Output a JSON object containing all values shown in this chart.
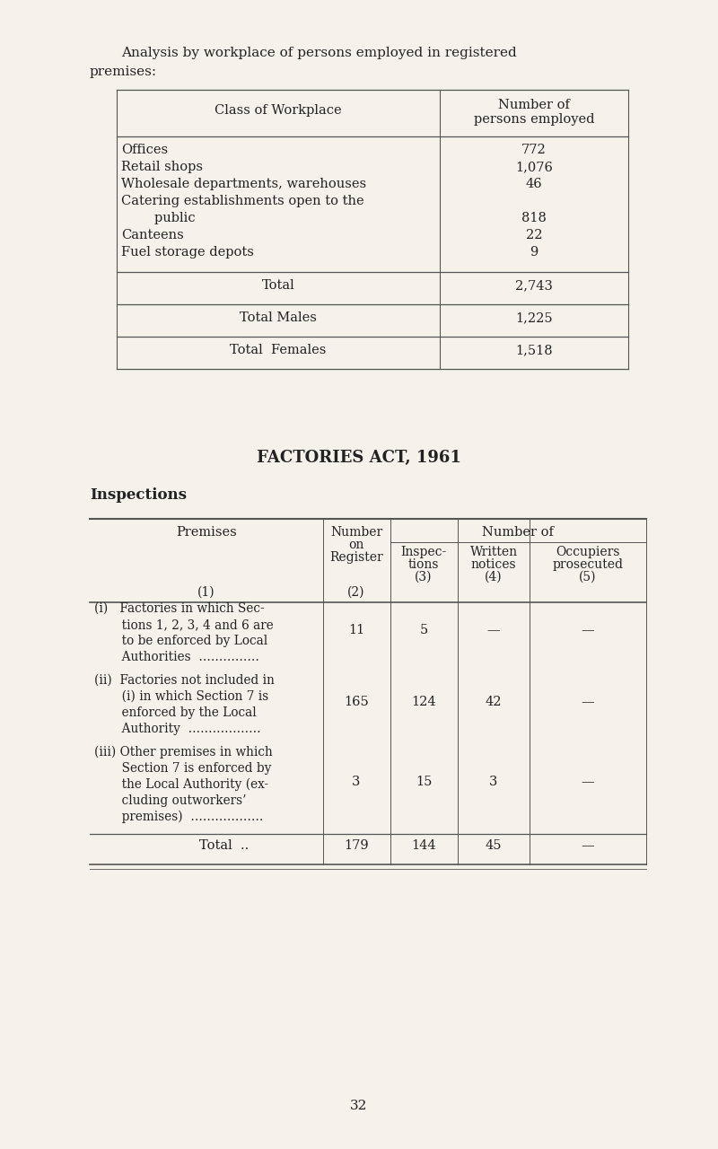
{
  "bg_color": "#f5f2eb",
  "text_color": "#222222",
  "page_number": "32",
  "intro_line1": "Analysis by workplace of persons employed in registered",
  "intro_line2": "premises:",
  "table1": {
    "col1_header": "Class of Workplace",
    "col2_header_line1": "Number of",
    "col2_header_line2": "persons employed",
    "rows": [
      {
        "label": "Offices",
        "value": "772"
      },
      {
        "label": "Retail shops",
        "value": "1,076"
      },
      {
        "label": "Wholesale departments, warehouses",
        "value": "46"
      },
      {
        "label": "Catering establishments open to the",
        "value": ""
      },
      {
        "label": "        public",
        "value": "818"
      },
      {
        "label": "Canteens",
        "value": "22"
      },
      {
        "label": "Fuel storage depots",
        "value": "9"
      }
    ],
    "total_label": "Total",
    "total_value": "2,743",
    "males_label": "Total Males",
    "males_value": "1,225",
    "females_label": "Total  Females",
    "females_value": "1,518"
  },
  "factories_title": "FACTORIES ACT, 1961",
  "inspections_subtitle": "Inspections",
  "table2_header_premises": "Premises",
  "table2_header_col1_num": "(1)",
  "table2_header_register": "Number\non\nRegister",
  "table2_header_col2_num": "(2)",
  "table2_header_numberof": "Number of",
  "table2_header_inspec": "Inspec-\ntions\n(3)",
  "table2_header_written": "Written\nnotices\n(4)",
  "table2_header_occupiers": "Occupiers\nprosecuted\n(5)",
  "table2_rows": [
    {
      "label_lines": [
        "(i)   Factories in which Sec-",
        "       tions 1, 2, 3, 4 and 6 are",
        "       to be enforced by Local",
        "       Authorities  ……………"
      ],
      "col2": "11",
      "col3": "5",
      "col4": "—",
      "col5": "—"
    },
    {
      "label_lines": [
        "(ii)  Factories not included in",
        "       (i) in which Section 7 is",
        "       enforced by the Local",
        "       Authority  ………………"
      ],
      "col2": "165",
      "col3": "124",
      "col4": "42",
      "col5": "—"
    },
    {
      "label_lines": [
        "(iii) Other premises in which",
        "       Section 7 is enforced by",
        "       the Local Authority (ex-",
        "       cluding outworkers’",
        "       premises)  ………………"
      ],
      "col2": "3",
      "col3": "15",
      "col4": "3",
      "col5": "—"
    }
  ],
  "table2_total_label": "Total  ..",
  "table2_total_col2": "179",
  "table2_total_col3": "144",
  "table2_total_col4": "45",
  "table2_total_col5": "—"
}
